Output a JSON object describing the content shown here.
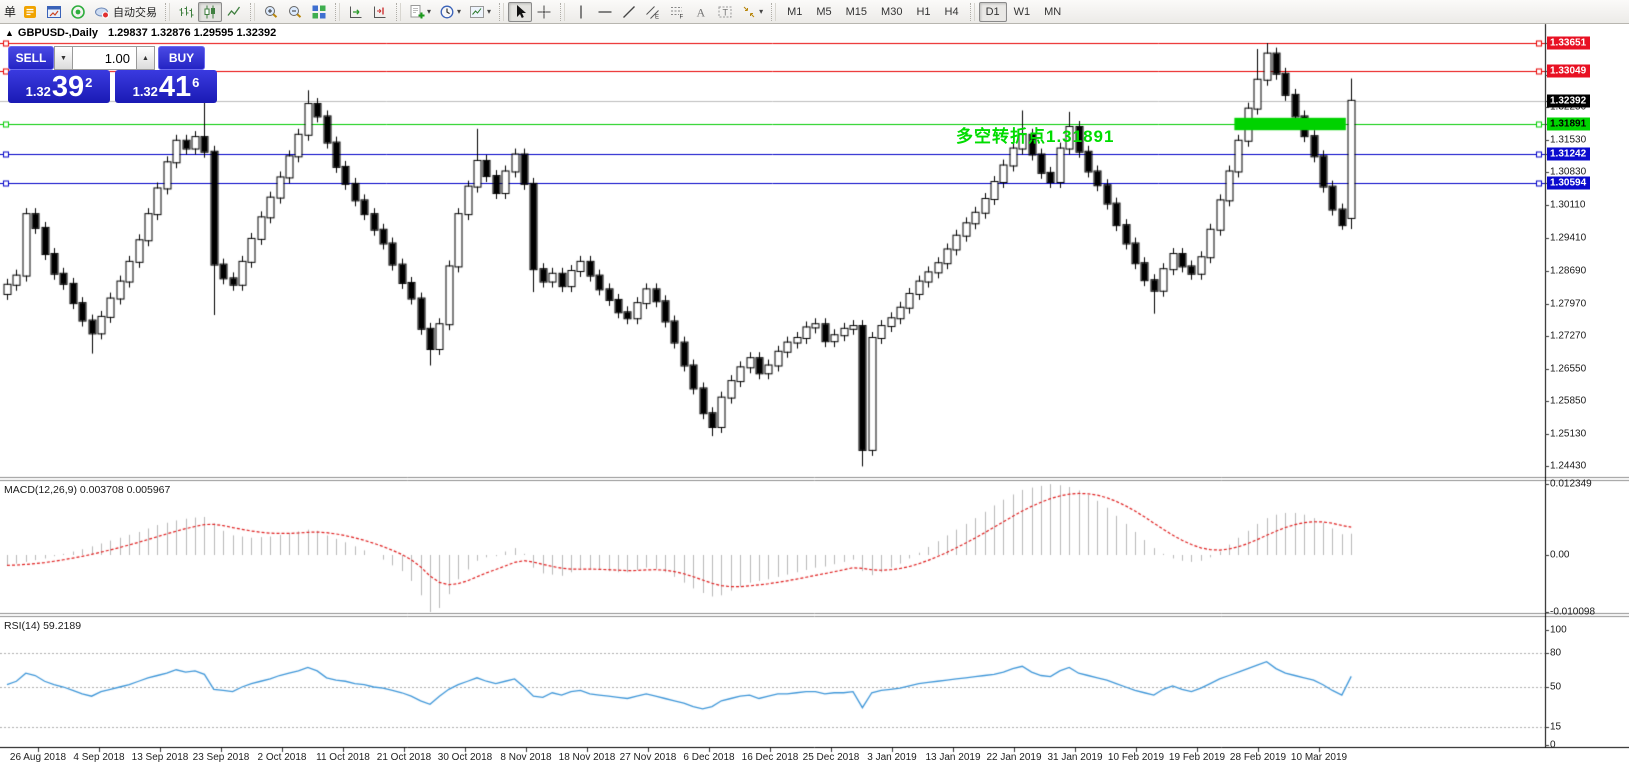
{
  "toolbar": {
    "order_char": "单",
    "autotrade_label": "自动交易",
    "icon_groups": [
      {
        "items": [
          {
            "icon": "new-order"
          },
          {
            "icon": "chart-window"
          },
          {
            "icon": "market-watch"
          },
          {
            "icon": "autotrade",
            "label": "自动交易"
          }
        ]
      },
      {
        "items": [
          {
            "icon": "bar-chart"
          },
          {
            "icon": "candlestick-chart",
            "active": true
          },
          {
            "icon": "line-chart"
          }
        ]
      },
      {
        "items": [
          {
            "icon": "zoom-in"
          },
          {
            "icon": "zoom-out"
          },
          {
            "icon": "tile-windows"
          }
        ]
      },
      {
        "items": [
          {
            "icon": "auto-scroll"
          },
          {
            "icon": "chart-shift"
          }
        ]
      },
      {
        "items": [
          {
            "icon": "indicators",
            "caret": true
          },
          {
            "icon": "periods",
            "caret": true
          },
          {
            "icon": "templates",
            "caret": true
          }
        ]
      },
      {
        "items": [
          {
            "icon": "cursor",
            "active": true
          },
          {
            "icon": "crosshair"
          }
        ]
      },
      {
        "items": [
          {
            "icon": "vertical-line"
          },
          {
            "icon": "horizontal-line"
          },
          {
            "icon": "trendline"
          },
          {
            "icon": "equidistant-channel"
          },
          {
            "icon": "fibonacci"
          },
          {
            "icon": "text"
          },
          {
            "icon": "text-label"
          },
          {
            "icon": "arrows",
            "caret": true
          }
        ]
      }
    ],
    "timeframes": [
      "M1",
      "M5",
      "M15",
      "M30",
      "H1",
      "H4",
      "D1",
      "W1",
      "MN"
    ],
    "active_timeframe": "D1"
  },
  "chart_header": {
    "collapse_arrow": "▲",
    "symbol_period": "GBPUSD-,Daily",
    "ohlc": "1.29837 1.32876 1.29595 1.32392"
  },
  "trade_panel": {
    "sell_label": "SELL",
    "buy_label": "BUY",
    "volume": "1.00",
    "spin_down": "▼",
    "spin_up": "▲",
    "sell_price_prefix": "1.32",
    "sell_price_big": "39",
    "sell_price_sup": "2",
    "buy_price_prefix": "1.32",
    "buy_price_big": "41",
    "buy_price_sup": "6"
  },
  "annotation": {
    "text": "多空转折点1.31891",
    "color": "#00dc00"
  },
  "panel_titles": {
    "macd": "MACD(12,26,9) 0.003708 0.005967",
    "rsi": "RSI(14) 59.2189"
  },
  "price_axis": {
    "ticks": [
      "1.32950",
      "1.32250",
      "1.31530",
      "1.30830",
      "1.30110",
      "1.29410",
      "1.28690",
      "1.27970",
      "1.27270",
      "1.26550",
      "1.25850",
      "1.25130",
      "1.24430"
    ],
    "badges": [
      {
        "value": "1.33651",
        "bg": "#e81123",
        "fg": "#ffffff"
      },
      {
        "value": "1.33049",
        "bg": "#e81123",
        "fg": "#ffffff"
      },
      {
        "value": "1.32392",
        "bg": "#000000",
        "fg": "#ffffff"
      },
      {
        "value": "1.31891",
        "bg": "#00d500",
        "fg": "#000000"
      },
      {
        "value": "1.31242",
        "bg": "#0b0bce",
        "fg": "#ffffff"
      },
      {
        "value": "1.30594",
        "bg": "#0b0bce",
        "fg": "#ffffff"
      }
    ]
  },
  "macd_axis": [
    {
      "label": "0.012349",
      "value": 0.012349
    },
    {
      "label": "0.00",
      "value": 0
    },
    {
      "label": "-0.010098",
      "value": -0.010098
    }
  ],
  "rsi_axis": [
    {
      "label": "100",
      "value": 100
    },
    {
      "label": "80",
      "value": 80
    },
    {
      "label": "50",
      "value": 50
    },
    {
      "label": "15",
      "value": 15
    },
    {
      "label": "0",
      "value": 0
    }
  ],
  "date_axis": [
    "26 Aug 2018",
    "4 Sep 2018",
    "13 Sep 2018",
    "23 Sep 2018",
    "2 Oct 2018",
    "11 Oct 2018",
    "21 Oct 2018",
    "30 Oct 2018",
    "8 Nov 2018",
    "18 Nov 2018",
    "27 Nov 2018",
    "6 Dec 2018",
    "16 Dec 2018",
    "25 Dec 2018",
    "3 Jan 2019",
    "13 Jan 2019",
    "22 Jan 2019",
    "31 Jan 2019",
    "10 Feb 2019",
    "19 Feb 2019",
    "28 Feb 2019",
    "10 Mar 2019"
  ],
  "chart_data": {
    "type": "candlestick",
    "symbol": "GBPUSD",
    "timeframe": "Daily",
    "title_ohlc": {
      "open": 1.29837,
      "high": 1.32876,
      "low": 1.29595,
      "close": 1.32392
    },
    "price_range_visible": [
      1.2443,
      1.33651
    ],
    "levels": [
      {
        "value": 1.33651,
        "color": "#e80000",
        "handles": true
      },
      {
        "value": 1.33049,
        "color": "#e80000",
        "handles": true
      },
      {
        "value": 1.32392,
        "color": "#bdbdbd",
        "handles": false
      },
      {
        "value": 1.31891,
        "color": "#00cc00",
        "handles": true
      },
      {
        "value": 1.31242,
        "color": "#0000c8",
        "handles": true
      },
      {
        "value": 1.30594,
        "color": "#0000c8",
        "handles": true
      }
    ],
    "highlight_zone": {
      "price_top": 1.3202,
      "price_bottom": 1.3175,
      "bar_start": 131,
      "bar_end": 142,
      "color": "#00d200"
    },
    "candles": {
      "first_open": 1.2818,
      "default_wick": 0.0013,
      "closes": [
        1.2838,
        1.2858,
        1.2992,
        1.2962,
        1.2905,
        1.2862,
        1.284,
        1.2798,
        1.276,
        1.2732,
        1.2768,
        1.2808,
        1.2845,
        1.2888,
        1.2935,
        1.2992,
        1.3048,
        1.3105,
        1.3152,
        1.3135,
        1.316,
        1.3128,
        1.2882,
        1.2852,
        1.2838,
        1.2888,
        1.2938,
        1.2985,
        1.3028,
        1.3072,
        1.3118,
        1.3165,
        1.3232,
        1.3205,
        1.3148,
        1.3095,
        1.3058,
        1.3022,
        1.2992,
        1.2958,
        1.2928,
        1.2882,
        1.2842,
        1.2808,
        1.2742,
        1.2698,
        1.2752,
        1.2878,
        1.2992,
        1.3052,
        1.3108,
        1.3075,
        1.3038,
        1.3085,
        1.3122,
        1.3058,
        1.2872,
        1.2845,
        1.2862,
        1.2835,
        1.2868,
        1.2888,
        1.2858,
        1.2828,
        1.2805,
        1.2778,
        1.2765,
        1.2798,
        1.2828,
        1.2802,
        1.2758,
        1.2712,
        1.2662,
        1.2612,
        1.2558,
        1.2528,
        1.2592,
        1.2628,
        1.2658,
        1.2678,
        1.2645,
        1.2662,
        1.2692,
        1.2712,
        1.2722,
        1.2745,
        1.2752,
        1.2715,
        1.2728,
        1.2742,
        1.2748,
        1.2478,
        1.2722,
        1.2748,
        1.2765,
        1.2788,
        1.2818,
        1.2845,
        1.2865,
        1.2885,
        1.2915,
        1.2945,
        1.2972,
        1.2995,
        1.3025,
        1.3062,
        1.3098,
        1.3135,
        1.3165,
        1.3122,
        1.3082,
        1.3062,
        1.3135,
        1.3182,
        1.3128,
        1.3085,
        1.3055,
        1.3015,
        1.2968,
        1.2928,
        1.2885,
        1.2848,
        1.2825,
        1.2872,
        1.2905,
        1.2878,
        1.2862,
        1.2898,
        1.2958,
        1.3022,
        1.3085,
        1.3152,
        1.3222,
        1.3285,
        1.3342,
        1.3298,
        1.3252,
        1.3205,
        1.3162,
        1.3118,
        1.3052,
        1.3002,
        1.2968,
        1.3239
      ],
      "open_overrides": {
        "143": 1.29837
      },
      "high_overrides": {
        "21": 1.3238,
        "32": 1.3262,
        "50": 1.3178,
        "108": 1.3218,
        "113": 1.3215,
        "133": 1.3352,
        "134": 1.3365,
        "143": 1.32876
      },
      "low_overrides": {
        "9": 1.2688,
        "22": 1.2772,
        "45": 1.2662,
        "56": 1.2822,
        "75": 1.2508,
        "91": 1.2442,
        "122": 1.2775,
        "142": 1.2958,
        "143": 1.29595
      }
    },
    "macd": {
      "params": [
        12,
        26,
        9
      ],
      "main_last": 0.003708,
      "signal_last": 0.005967,
      "signal_period": 9,
      "range": [
        -0.010098,
        0.012349
      ],
      "main": [
        -0.0018,
        -0.0015,
        -0.0012,
        -0.0009,
        -0.0006,
        -0.0002,
        0.0002,
        0.0006,
        0.001,
        0.0015,
        0.002,
        0.0025,
        0.003,
        0.0035,
        0.004,
        0.0046,
        0.0052,
        0.0056,
        0.006,
        0.0063,
        0.0065,
        0.0066,
        0.0055,
        0.0042,
        0.0034,
        0.0032,
        0.003,
        0.0031,
        0.0032,
        0.0035,
        0.0038,
        0.0041,
        0.0044,
        0.0042,
        0.0034,
        0.0028,
        0.0022,
        0.0015,
        0.0008,
        0,
        -0.0008,
        -0.0018,
        -0.0028,
        -0.0045,
        -0.007,
        -0.01,
        -0.0092,
        -0.0068,
        -0.0042,
        -0.0025,
        -0.001,
        -0.0004,
        -0.0002,
        0.0006,
        0.0012,
        0.0002,
        -0.0022,
        -0.0032,
        -0.0034,
        -0.0036,
        -0.003,
        -0.0026,
        -0.0024,
        -0.0026,
        -0.0028,
        -0.003,
        -0.003,
        -0.0026,
        -0.0022,
        -0.0024,
        -0.003,
        -0.0038,
        -0.0048,
        -0.0058,
        -0.0066,
        -0.0072,
        -0.007,
        -0.0062,
        -0.0055,
        -0.0048,
        -0.0045,
        -0.0042,
        -0.0038,
        -0.0034,
        -0.003,
        -0.0026,
        -0.0022,
        -0.002,
        -0.0016,
        -0.0012,
        -0.0008,
        -0.0028,
        -0.0035,
        -0.003,
        -0.0022,
        -0.0015,
        -0.0006,
        0.0004,
        0.0014,
        0.0024,
        0.0034,
        0.0044,
        0.0054,
        0.0064,
        0.0075,
        0.0086,
        0.0096,
        0.0105,
        0.0113,
        0.0117,
        0.012,
        0.0123,
        0.0121,
        0.0118,
        0.0112,
        0.0104,
        0.0094,
        0.0082,
        0.0068,
        0.0054,
        0.004,
        0.0026,
        0.0012,
        0.0002,
        -0.0006,
        -0.001,
        -0.0012,
        -0.001,
        -0.0004,
        0.0006,
        0.0018,
        0.003,
        0.0042,
        0.0054,
        0.0064,
        0.007,
        0.0073,
        0.0073,
        0.007,
        0.0064,
        0.0056,
        0.0046,
        0.0036,
        0.0037
      ]
    },
    "rsi": {
      "period": 14,
      "last": 59.2189,
      "levels": [
        80,
        50,
        15
      ],
      "range": [
        0,
        100
      ],
      "values": [
        52,
        55,
        62,
        60,
        55,
        52,
        50,
        47,
        44,
        42,
        46,
        48,
        50,
        52,
        55,
        58,
        60,
        62,
        65,
        63,
        64,
        61,
        48,
        47,
        46,
        50,
        53,
        55,
        57,
        60,
        62,
        64,
        67,
        64,
        58,
        56,
        55,
        53,
        52,
        50,
        49,
        47,
        45,
        42,
        38,
        35,
        42,
        48,
        52,
        55,
        58,
        55,
        53,
        55,
        57,
        50,
        42,
        41,
        45,
        43,
        46,
        47,
        44,
        43,
        42,
        41,
        40,
        42,
        44,
        42,
        40,
        38,
        36,
        33,
        31,
        33,
        38,
        40,
        42,
        43,
        40,
        42,
        44,
        44,
        45,
        46,
        46,
        44,
        45,
        45,
        46,
        32,
        45,
        47,
        48,
        49,
        51,
        53,
        54,
        55,
        56,
        57,
        58,
        59,
        60,
        61,
        63,
        66,
        68,
        63,
        60,
        59,
        64,
        67,
        62,
        60,
        58,
        56,
        53,
        50,
        47,
        45,
        43,
        48,
        51,
        48,
        46,
        49,
        53,
        57,
        60,
        63,
        66,
        69,
        72,
        66,
        62,
        60,
        58,
        56,
        52,
        47,
        43,
        59.2189
      ]
    },
    "colors": {
      "bull": "#ffffff",
      "bear": "#000000",
      "outline": "#000000",
      "macd_hist": "#b9b9b9",
      "macd_signal": "#e02020",
      "rsi_line": "#3f97d9",
      "level_dash": "#b0b0b0"
    }
  }
}
